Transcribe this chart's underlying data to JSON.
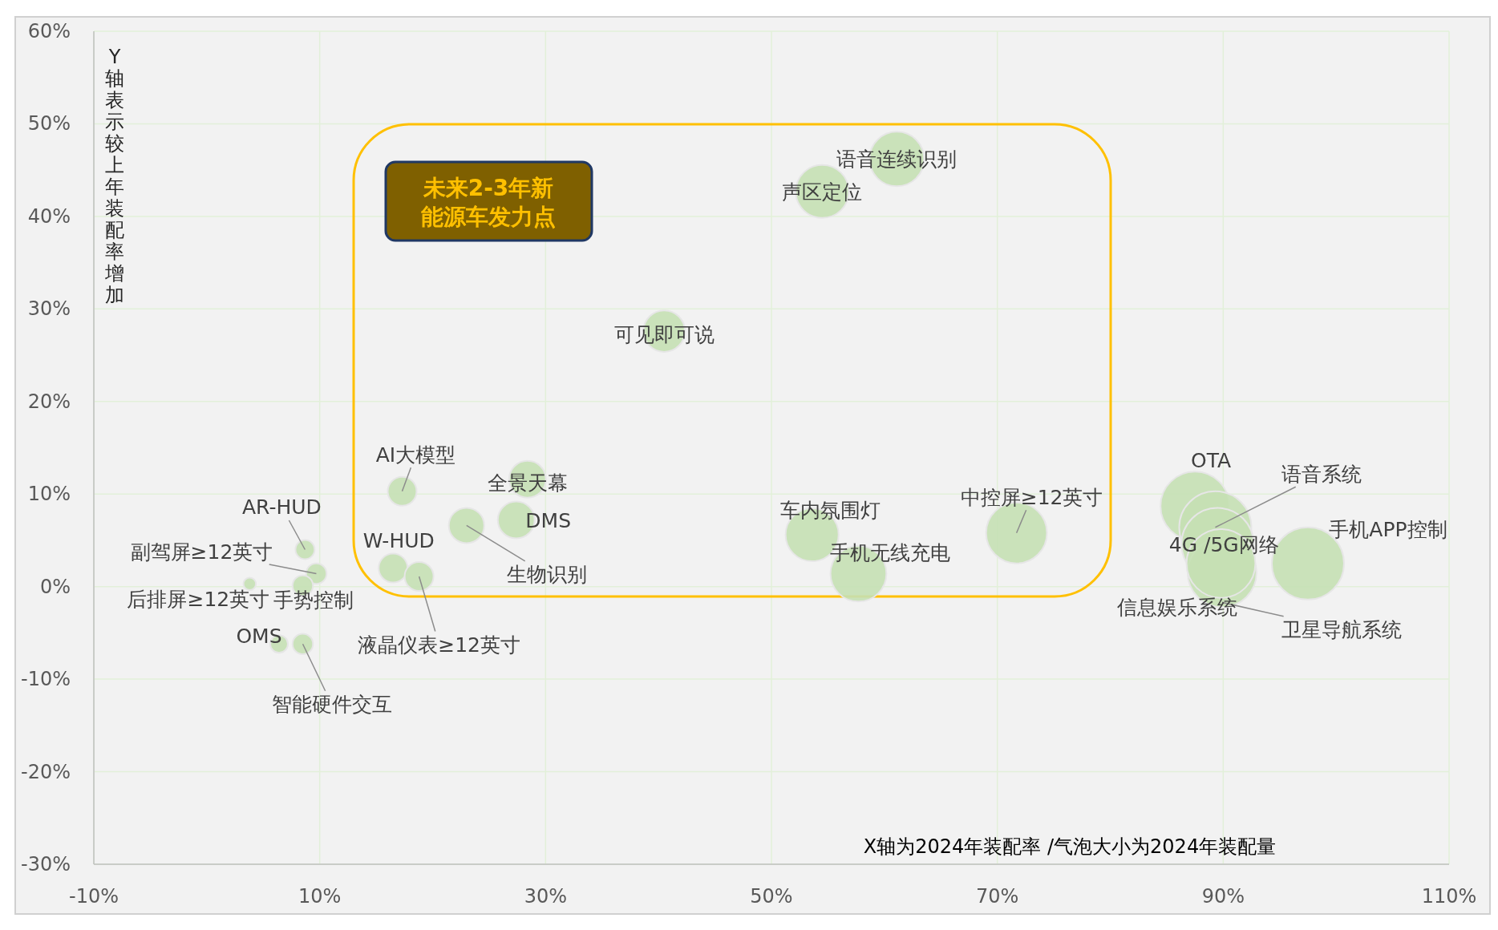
{
  "chart_data": {
    "type": "bubble",
    "xlim": [
      -10,
      110
    ],
    "ylim": [
      -30,
      60
    ],
    "xticks": [
      {
        "value": -10,
        "label": "-10%"
      },
      {
        "value": 10,
        "label": "10%"
      },
      {
        "value": 30,
        "label": "30%"
      },
      {
        "value": 50,
        "label": "50%"
      },
      {
        "value": 70,
        "label": "70%"
      },
      {
        "value": 90,
        "label": "90%"
      },
      {
        "value": 110,
        "label": "110%"
      }
    ],
    "yticks": [
      {
        "value": -30,
        "label": "-30%"
      },
      {
        "value": -20,
        "label": "-20%"
      },
      {
        "value": -10,
        "label": "-10%"
      },
      {
        "value": 0,
        "label": "0%"
      },
      {
        "value": 10,
        "label": "10%"
      },
      {
        "value": 20,
        "label": "20%"
      },
      {
        "value": 30,
        "label": "30%"
      },
      {
        "value": 40,
        "label": "40%"
      },
      {
        "value": 50,
        "label": "50%"
      },
      {
        "value": 60,
        "label": "60%"
      }
    ],
    "grid": true,
    "annotations": [
      "Y轴表示较上年装配率增加",
      "X轴为2024年装配率 /气泡大小为2024年装配量",
      "未来2-3年新能源车发力点"
    ],
    "series": [
      {
        "name": "语音连续识别",
        "color": "#c5e0b4",
        "x": [
          61.1
        ],
        "values": [
          46.2
        ],
        "sizes": [
          0.57
        ]
      },
      {
        "name": "声区定位",
        "color": "#c5e0b4",
        "x": [
          54.5
        ],
        "values": [
          42.7
        ],
        "sizes": [
          0.54
        ]
      },
      {
        "name": "可见即可说",
        "color": "#c5e0b4",
        "x": [
          40.5
        ],
        "values": [
          27.6
        ],
        "sizes": [
          0.33
        ]
      },
      {
        "name": "AI大模型",
        "color": "#c5e0b4",
        "x": [
          17.3
        ],
        "values": [
          10.3
        ],
        "sizes": [
          0.16
        ]
      },
      {
        "name": "全景天幕",
        "color": "#c5e0b4",
        "x": [
          28.4
        ],
        "values": [
          11.6
        ],
        "sizes": [
          0.26
        ]
      },
      {
        "name": "DMS",
        "color": "#c5e0b4",
        "x": [
          27.4
        ],
        "values": [
          7.2
        ],
        "sizes": [
          0.26
        ]
      },
      {
        "name": "生物识别",
        "color": "#c5e0b4",
        "x": [
          23.0
        ],
        "values": [
          6.6
        ],
        "sizes": [
          0.24
        ]
      },
      {
        "name": "W-HUD",
        "color": "#c5e0b4",
        "x": [
          16.5
        ],
        "values": [
          2.0
        ],
        "sizes": [
          0.16
        ]
      },
      {
        "name": "液晶仪表≥12英寸",
        "color": "#c5e0b4",
        "x": [
          18.8
        ],
        "values": [
          1.1
        ],
        "sizes": [
          0.16
        ]
      },
      {
        "name": "AR-HUD",
        "color": "#c5e0b4",
        "x": [
          8.7
        ],
        "values": [
          4.0
        ],
        "sizes": [
          0.07
        ]
      },
      {
        "name": "副驾屏≥12英寸",
        "color": "#c5e0b4",
        "x": [
          9.7
        ],
        "values": [
          1.4
        ],
        "sizes": [
          0.08
        ]
      },
      {
        "name": "后排屏≥12英寸",
        "color": "#c5e0b4",
        "x": [
          3.8
        ],
        "values": [
          0.3
        ],
        "sizes": [
          0.03
        ]
      },
      {
        "name": "手势控制",
        "color": "#c5e0b4",
        "x": [
          8.5
        ],
        "values": [
          0.1
        ],
        "sizes": [
          0.08
        ]
      },
      {
        "name": "OMS",
        "color": "#c5e0b4",
        "x": [
          6.4
        ],
        "values": [
          -6.2
        ],
        "sizes": [
          0.06
        ]
      },
      {
        "name": "智能硬件交互",
        "color": "#c5e0b4",
        "x": [
          8.5
        ],
        "values": [
          -6.2
        ],
        "sizes": [
          0.08
        ]
      },
      {
        "name": "车内氛围灯",
        "color": "#c5e0b4",
        "x": [
          53.6
        ],
        "values": [
          5.6
        ],
        "sizes": [
          0.54
        ]
      },
      {
        "name": "手机无线充电",
        "color": "#c5e0b4",
        "x": [
          57.7
        ],
        "values": [
          1.4
        ],
        "sizes": [
          0.6
        ]
      },
      {
        "name": "中控屏≥12英寸",
        "color": "#c5e0b4",
        "x": [
          71.7
        ],
        "values": [
          5.8
        ],
        "sizes": [
          0.71
        ]
      },
      {
        "name": "OTA",
        "color": "#c5e0b4",
        "x": [
          87.5
        ],
        "values": [
          8.7
        ],
        "sizes": [
          0.91
        ]
      },
      {
        "name": "语音系统",
        "color": "#c5e0b4",
        "x": [
          89.3
        ],
        "values": [
          6.4
        ],
        "sizes": [
          1
        ]
      },
      {
        "name": "4G /5G网络",
        "color": "#c5e0b4",
        "x": [
          89.5
        ],
        "values": [
          4.6
        ],
        "sizes": [
          1
        ]
      },
      {
        "name": "卫星导航系统",
        "color": "#c5e0b4",
        "x": [
          89.9
        ],
        "values": [
          1.5
        ],
        "sizes": [
          0.91
        ]
      },
      {
        "name": "信息娱乐系统",
        "color": "#c5e0b4",
        "x": [
          89.8
        ],
        "values": [
          2.5
        ],
        "sizes": [
          0.91
        ]
      },
      {
        "name": "手机APP控制",
        "color": "#c5e0b4",
        "x": [
          97.5
        ],
        "values": [
          2.5
        ],
        "sizes": [
          1
        ]
      }
    ]
  }
}
